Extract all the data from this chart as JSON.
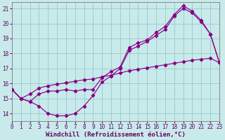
{
  "xlabel": "Windchill (Refroidissement éolien,°C)",
  "background_color": "#c8eaea",
  "grid_color": "#9ecece",
  "line_color": "#880088",
  "marker": "D",
  "markersize": 2.2,
  "linewidth": 0.85,
  "xlim": [
    0,
    23
  ],
  "ylim": [
    13.5,
    21.4
  ],
  "xticks": [
    0,
    1,
    2,
    3,
    4,
    5,
    6,
    7,
    8,
    9,
    10,
    11,
    12,
    13,
    14,
    15,
    16,
    17,
    18,
    19,
    20,
    21,
    22,
    23
  ],
  "yticks": [
    14,
    15,
    16,
    17,
    18,
    19,
    20,
    21
  ],
  "curve_bottom_x": [
    0,
    1,
    2,
    3,
    4,
    5,
    6,
    7,
    8,
    9,
    10,
    11,
    12,
    13,
    14,
    15,
    16,
    17,
    18,
    19,
    20,
    21,
    22,
    23
  ],
  "curve_bottom_y": [
    15.6,
    15.0,
    14.8,
    14.5,
    14.0,
    13.85,
    13.85,
    14.0,
    14.5,
    15.2,
    16.1,
    16.5,
    17.0,
    18.2,
    18.5,
    18.8,
    19.2,
    19.6,
    20.5,
    21.0,
    20.7,
    20.1,
    19.3,
    17.4
  ],
  "curve_upper_x": [
    0,
    1,
    2,
    3,
    4,
    5,
    6,
    7,
    8,
    9,
    10,
    11,
    12,
    13,
    14,
    15,
    16,
    17,
    18,
    19,
    20,
    21,
    22,
    23
  ],
  "curve_upper_y": [
    15.6,
    15.0,
    14.8,
    15.3,
    15.5,
    15.5,
    15.6,
    15.5,
    15.6,
    15.6,
    16.4,
    16.8,
    17.1,
    18.4,
    18.7,
    18.9,
    19.4,
    19.8,
    20.6,
    21.2,
    20.8,
    20.2,
    19.3,
    17.4
  ],
  "curve_diag_x": [
    0,
    1,
    2,
    3,
    4,
    5,
    6,
    7,
    8,
    9,
    10,
    11,
    12,
    13,
    14,
    15,
    16,
    17,
    18,
    19,
    20,
    21,
    22,
    23
  ],
  "curve_diag_y": [
    15.6,
    15.0,
    15.3,
    15.7,
    15.85,
    15.95,
    16.05,
    16.15,
    16.25,
    16.3,
    16.45,
    16.55,
    16.7,
    16.85,
    16.95,
    17.05,
    17.15,
    17.25,
    17.35,
    17.45,
    17.55,
    17.62,
    17.68,
    17.4
  ],
  "font_color": "#660066",
  "tick_fontsize": 5.5,
  "label_fontsize": 6.5
}
